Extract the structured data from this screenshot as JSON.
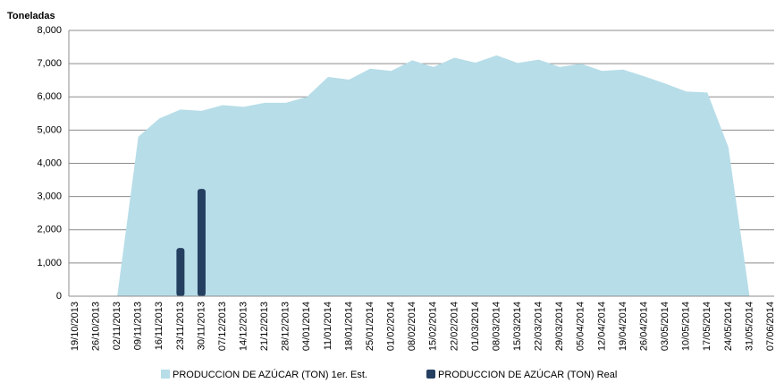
{
  "chart_data": {
    "type": "area+bar",
    "y_label": "Toneladas",
    "categories": [
      "19/10/2013",
      "26/10/2013",
      "02/11/2013",
      "09/11/2013",
      "16/11/2013",
      "23/11/2013",
      "30/11/2013",
      "07/12/2013",
      "14/12/2013",
      "21/12/2013",
      "28/12/2013",
      "04/01/2014",
      "11/01/2014",
      "18/01/2014",
      "25/01/2014",
      "01/02/2014",
      "08/02/2014",
      "15/02/2014",
      "22/02/2014",
      "01/03/2014",
      "08/03/2014",
      "15/03/2014",
      "22/03/2014",
      "29/03/2014",
      "05/04/2014",
      "12/04/2014",
      "19/04/2014",
      "26/04/2014",
      "03/05/2014",
      "10/05/2014",
      "17/05/2014",
      "24/05/2014",
      "31/05/2014",
      "07/06/2014"
    ],
    "series": [
      {
        "name": "PRODUCCION DE AZÚCAR (TON) 1er. Est.",
        "type": "area",
        "color": "#b7dde8",
        "values": [
          null,
          null,
          0,
          4800,
          5350,
          5620,
          5580,
          5750,
          5700,
          5820,
          5820,
          6000,
          6600,
          6520,
          6850,
          6780,
          7100,
          6900,
          7180,
          7030,
          7250,
          7020,
          7120,
          6900,
          7000,
          6780,
          6820,
          6620,
          6400,
          6160,
          6130,
          4480,
          0,
          null
        ]
      },
      {
        "name": "PRODUCCION DE AZÚCAR (TON) Real",
        "type": "bar",
        "color": "#243f60",
        "values": [
          null,
          null,
          null,
          null,
          null,
          1450,
          3230,
          null,
          null,
          null,
          null,
          null,
          null,
          null,
          null,
          null,
          null,
          null,
          null,
          null,
          null,
          null,
          null,
          null,
          null,
          null,
          null,
          null,
          null,
          null,
          null,
          null,
          null,
          null
        ]
      }
    ],
    "ylim": [
      0,
      8000
    ],
    "yticks": [
      0,
      {
        "value": 1000,
        "label": "1,000"
      },
      {
        "value": 2000,
        "label": "2,000"
      },
      {
        "value": 3000,
        "label": "3,000"
      },
      {
        "value": 4000,
        "label": "4,000"
      },
      {
        "value": 5000,
        "label": "5,000"
      },
      {
        "value": 6000,
        "label": "6,000"
      },
      {
        "value": 7000,
        "label": "7,000"
      },
      {
        "value": 8000,
        "label": "8,000"
      }
    ],
    "grid": true
  }
}
